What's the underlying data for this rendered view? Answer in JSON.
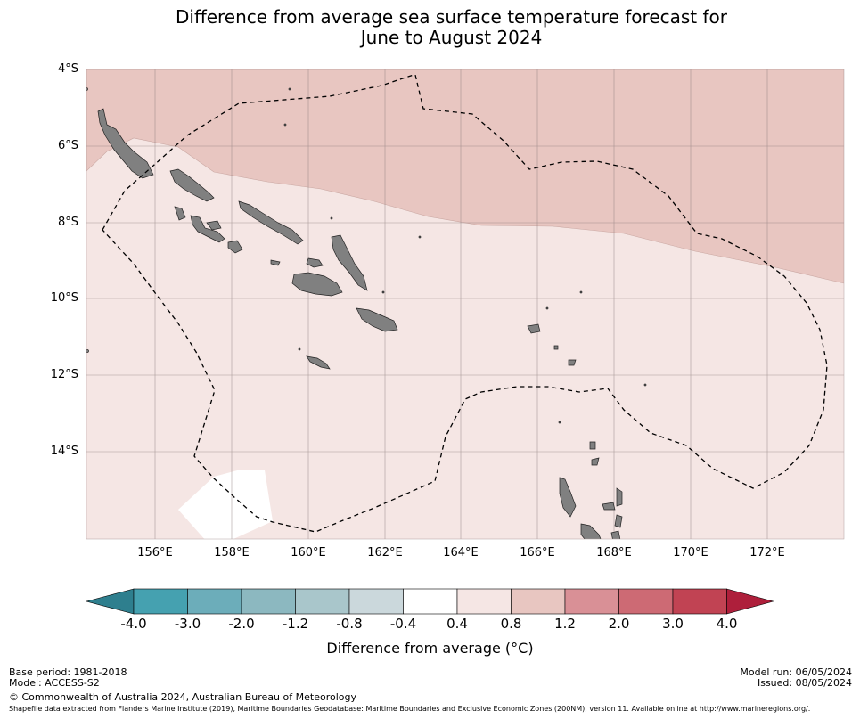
{
  "title_line1": "Difference from average sea surface temperature forecast for",
  "title_line2": "June to August 2024",
  "lat_labels": [
    "4°S",
    "6°S",
    "8°S",
    "10°S",
    "12°S",
    "14°S"
  ],
  "lon_labels": [
    "156°E",
    "158°E",
    "160°E",
    "162°E",
    "164°E",
    "166°E",
    "168°E",
    "170°E",
    "172°E"
  ],
  "colorbar": {
    "ticks": [
      "-4.0",
      "-3.0",
      "-2.0",
      "-1.2",
      "-0.8",
      "-0.4",
      "0.4",
      "0.8",
      "1.2",
      "2.0",
      "3.0",
      "4.0"
    ],
    "colors": [
      "#2e7f8e",
      "#45a1b0",
      "#6cadba",
      "#8cb8c0",
      "#a9c6cb",
      "#cbd8dc",
      "#ffffff",
      "#f5e6e4",
      "#e8c6c1",
      "#d99096",
      "#cd6a74",
      "#c14353",
      "#ae1f3b"
    ],
    "label": "Difference from average (°C)"
  },
  "map": {
    "fill_colors": {
      "high": "#e8c6c1",
      "mid": "#f5e6e4",
      "neutral": "#ffffff"
    },
    "land_color": "#808080"
  },
  "footer": {
    "base_period": "Base period: 1981-2018",
    "model": "Model: ACCESS-S2",
    "model_run": "Model run: 06/05/2024",
    "issued": "Issued: 08/05/2024",
    "copyright": "© Commonwealth of Australia 2024, Australian Bureau of Meteorology",
    "shapefile_note": "Shapefile data extracted from Flanders Marine Institute (2019), Maritime Boundaries Geodatabase: Maritime Boundaries and Exclusive Economic Zones (200NM), version 11. Available online at http://www.marineregions.org/."
  }
}
